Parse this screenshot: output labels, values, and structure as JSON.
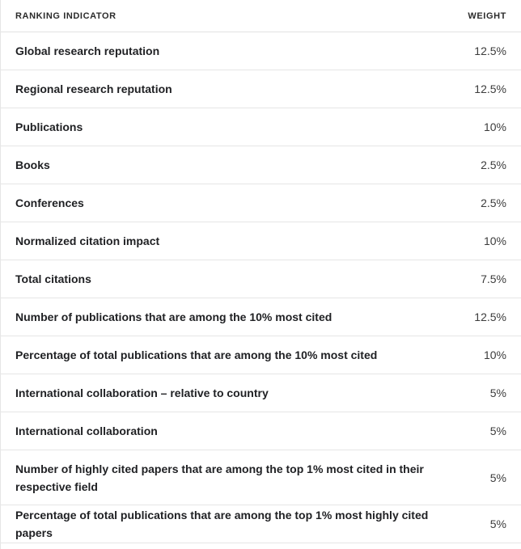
{
  "header": {
    "indicator_label": "RANKING INDICATOR",
    "weight_label": "WEIGHT"
  },
  "rows": [
    {
      "indicator": "Global research reputation",
      "weight": "12.5%"
    },
    {
      "indicator": "Regional research reputation",
      "weight": "12.5%"
    },
    {
      "indicator": "Publications",
      "weight": "10%"
    },
    {
      "indicator": "Books",
      "weight": "2.5%"
    },
    {
      "indicator": "Conferences",
      "weight": "2.5%"
    },
    {
      "indicator": "Normalized citation impact",
      "weight": "10%"
    },
    {
      "indicator": "Total citations",
      "weight": "7.5%"
    },
    {
      "indicator": "Number of publications that are among the 10% most cited",
      "weight": "12.5%"
    },
    {
      "indicator": "Percentage of total publications that are among the 10% most cited",
      "weight": "10%"
    },
    {
      "indicator": "International collaboration – relative to country",
      "weight": "5%"
    },
    {
      "indicator": "International collaboration",
      "weight": "5%"
    },
    {
      "indicator": "Number of highly cited papers that are among the top 1% most cited in their respective field",
      "weight": "5%"
    },
    {
      "indicator": "Percentage of total publications that are among the top 1% most highly cited papers",
      "weight": "5%"
    }
  ]
}
